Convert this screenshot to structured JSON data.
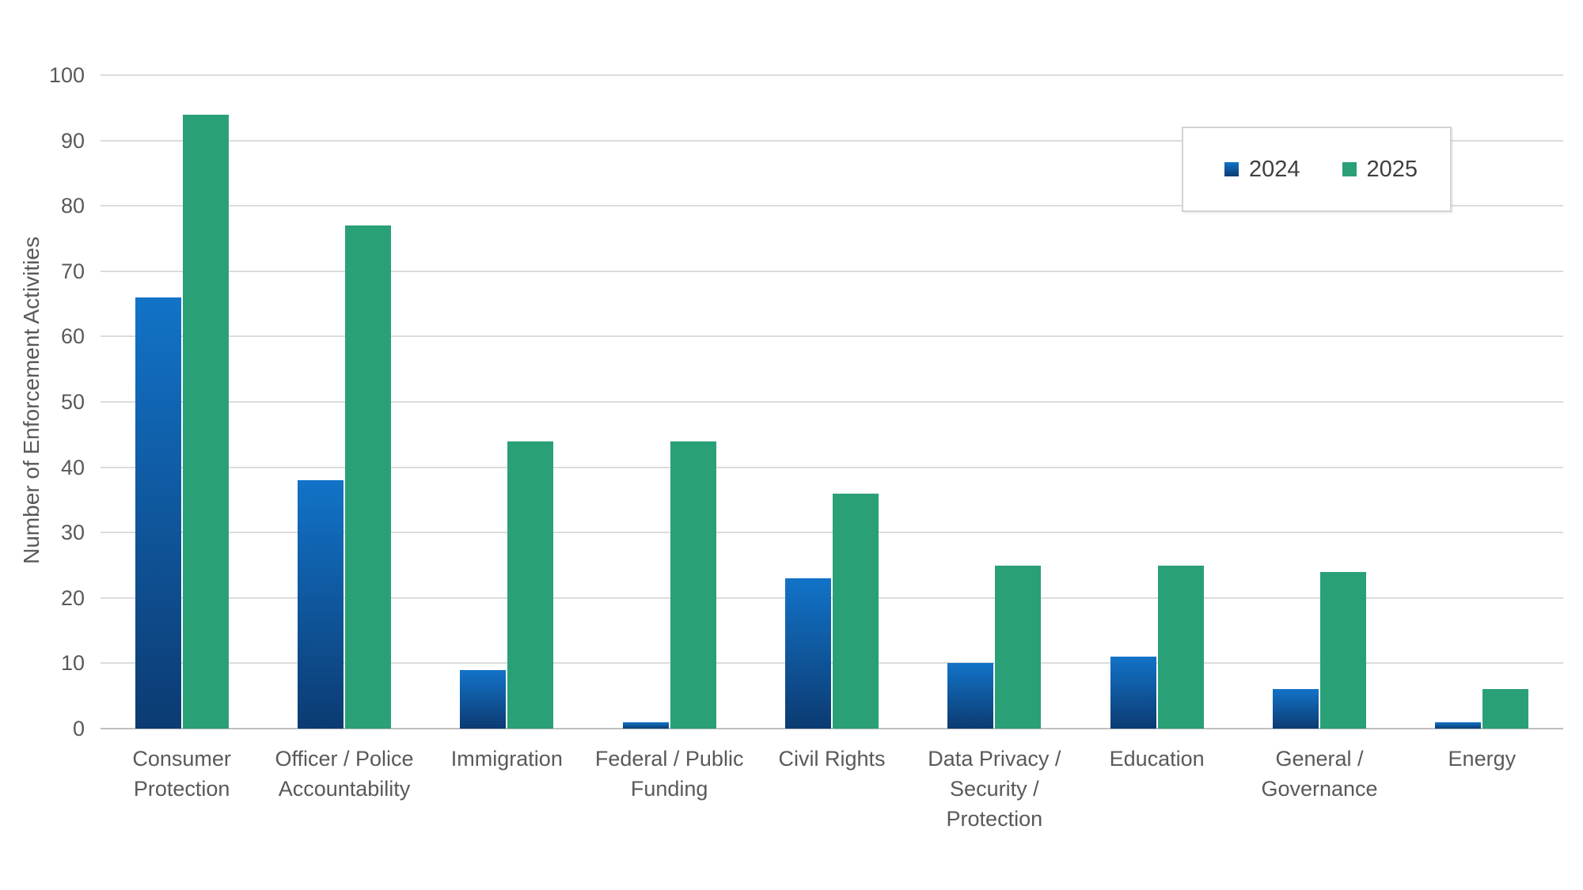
{
  "chart_data": {
    "type": "bar",
    "title": "",
    "ylabel": "Number of Enforcement Activities",
    "xlabel": "",
    "ylim": [
      0,
      100
    ],
    "ytick_step": 10,
    "grid": true,
    "legend_position": "top-right-inside",
    "categories": [
      "Consumer Protection",
      "Officer / Police Accountability",
      "Immigration",
      "Federal / Public Funding",
      "Civil Rights",
      "Data Privacy / Security / Protection",
      "Education",
      "General / Governance",
      "Energy"
    ],
    "category_label_lines": [
      [
        "Consumer",
        "Protection"
      ],
      [
        "Officer / Police",
        "Accountability"
      ],
      [
        "Immigration"
      ],
      [
        "Federal / Public",
        "Funding"
      ],
      [
        "Civil Rights"
      ],
      [
        "Data Privacy /",
        "Security /",
        "Protection"
      ],
      [
        "Education"
      ],
      [
        "General /",
        "Governance"
      ],
      [
        "Energy"
      ]
    ],
    "series": [
      {
        "name": "2024",
        "values": [
          66,
          38,
          9,
          1,
          23,
          10,
          11,
          6,
          1
        ]
      },
      {
        "name": "2025",
        "values": [
          94,
          77,
          44,
          44,
          36,
          25,
          25,
          24,
          6
        ]
      }
    ],
    "colors": {
      "series_2024_top": "#1273C8",
      "series_2024_bottom": "#0C3B72",
      "series_2025": "#2AA077",
      "gridline": "#DCDCDC",
      "axis_line": "#C0C0C0",
      "tick_label": "#595959",
      "category_label": "#595959",
      "legend_text": "#404040",
      "background": "#FFFFFF"
    }
  }
}
